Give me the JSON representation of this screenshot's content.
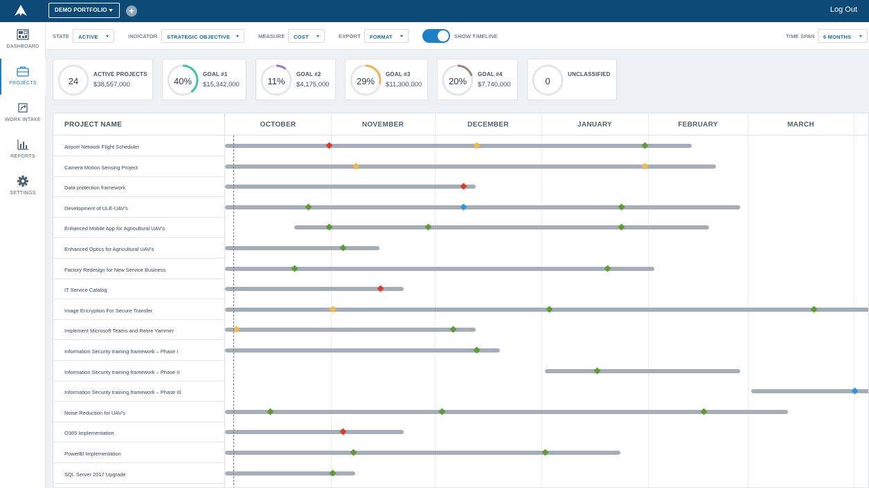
{
  "topbar": {
    "portfolio_label": "DEMO PORTFOLIO",
    "add_label": "+",
    "logout_label": "Log Out"
  },
  "sidebar": {
    "items": [
      {
        "label": "DASHBOARD",
        "icon": "dashboard-icon",
        "active": false
      },
      {
        "label": "PROJECTS",
        "icon": "briefcase-icon",
        "active": true
      },
      {
        "label": "WORK INTAKE",
        "icon": "share-arrow-icon",
        "active": false
      },
      {
        "label": "REPORTS",
        "icon": "bar-chart-icon",
        "active": false
      },
      {
        "label": "SETTINGS",
        "icon": "gear-icon",
        "active": false
      }
    ]
  },
  "filters": {
    "state_label": "STATE",
    "state_value": "ACTIVE",
    "indicator_label": "INDICATOR",
    "indicator_value": "STRATEGIC OBJECTIVE",
    "measure_label": "MEASURE",
    "measure_value": "COST",
    "export_label": "EXPORT",
    "export_value": "FORMAT",
    "timeline_label": "SHOW TIMELINE",
    "timeline_on": true,
    "timespan_label": "TIME SPAN",
    "timespan_value": "6 MONTHS"
  },
  "cards": [
    {
      "value": "24",
      "title": "ACTIVE PROJECTS",
      "sub": "$38,557,000",
      "percent": 0,
      "color": "#e3e7eb"
    },
    {
      "value": "40%",
      "title": "GOAL #1",
      "sub": "$15,342,000",
      "percent": 40,
      "color": "#3ec7a1"
    },
    {
      "value": "11%",
      "title": "GOAL #2",
      "sub": "$4,175,000",
      "percent": 11,
      "color": "#8a7fd0"
    },
    {
      "value": "29%",
      "title": "GOAL #3",
      "sub": "$11,300,000",
      "percent": 29,
      "color": "#f0b25a"
    },
    {
      "value": "20%",
      "title": "GOAL #4",
      "sub": "$7,740,000",
      "percent": 20,
      "color": "#9c8477"
    },
    {
      "value": "0",
      "title": "UNCLASSIFIED",
      "sub": "",
      "percent": 0,
      "color": "#e3e7eb"
    }
  ],
  "gantt": {
    "name_header": "PROJECT NAME",
    "months": [
      "OCTOBER",
      "NOVEMBER",
      "DECEMBER",
      "JANUARY",
      "FEBRUARY",
      "MARCH"
    ],
    "milestone_colors": {
      "red": "#de3b2f",
      "yellow": "#f2b84b",
      "green": "#5e9a35",
      "blue": "#2f95e0"
    },
    "projects": [
      {
        "name": "Airport Network Flight Scheduler"
      },
      {
        "name": "Camera Motion Sensing Project"
      },
      {
        "name": "Data protection framework"
      },
      {
        "name": "Development of ULE-UAV's"
      },
      {
        "name": "Enhanced Mobile App for Agricultural UAV's"
      },
      {
        "name": "Enhanced Optics for Agricultural UAV's"
      },
      {
        "name": "Factory Redesign for New Service Business"
      },
      {
        "name": "IT Service Catalog"
      },
      {
        "name": "Image Encryption For Secure Transfer"
      },
      {
        "name": "Implement Microsoft Teams and Retire Yammer"
      },
      {
        "name": "Information Security training framework – Phase I"
      },
      {
        "name": "Information Security training framework – Phase II"
      },
      {
        "name": "Information Security training framework – Phase III"
      },
      {
        "name": "Noise Reduction for UAV's"
      },
      {
        "name": "O365 Implementation"
      },
      {
        "name": "PowerBI Implementation"
      },
      {
        "name": "SQL Server 2017 Upgrade"
      }
    ]
  }
}
